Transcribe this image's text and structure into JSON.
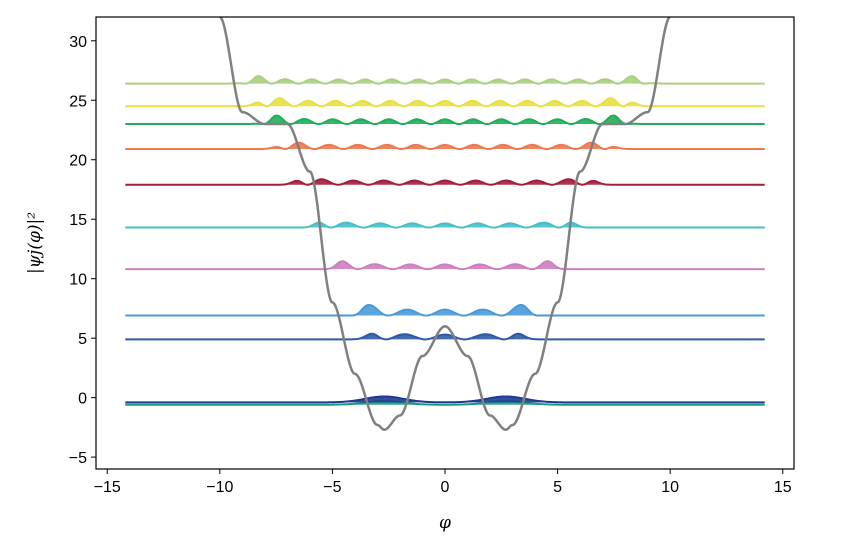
{
  "chart_data": {
    "type": "line",
    "title": "",
    "xlabel": "φ",
    "ylabel": "|ψj(φ)|²",
    "xlim": [
      -15.5,
      15.5
    ],
    "ylim": [
      -6,
      32
    ],
    "xticks": [
      -15,
      -10,
      -5,
      0,
      5,
      10,
      15
    ],
    "xtick_labels": [
      "−15",
      "−10",
      "−5",
      "0",
      "5",
      "10",
      "15"
    ],
    "yticks": [
      -5,
      0,
      5,
      10,
      15,
      20,
      25,
      30
    ],
    "ytick_labels": [
      "−5",
      "0",
      "5",
      "10",
      "15",
      "20",
      "25",
      "30"
    ],
    "grid": false,
    "legend": "none",
    "x_range": [
      -14.2,
      14.2
    ],
    "potential": {
      "color": "#808080",
      "description_points": {
        "phi": [
          -10,
          -9,
          -8,
          -7,
          -6,
          -5,
          -4,
          -3,
          -2.7,
          -2,
          -1,
          0,
          1,
          2,
          2.7,
          3,
          4,
          5,
          6,
          7,
          8,
          9,
          10
        ],
        "V": [
          32,
          24,
          23,
          23,
          19,
          8,
          2,
          -2.3,
          -2.7,
          -1.5,
          3.5,
          6,
          3.5,
          -1.5,
          -2.7,
          -2.3,
          2,
          8,
          19,
          23,
          23,
          24,
          32
        ]
      }
    },
    "series": [
      {
        "offset": -0.6,
        "color": "#1a9a7c",
        "shape": "double_well",
        "amp": 0.3
      },
      {
        "offset": -0.4,
        "color": "#1f3a93",
        "shape": "double_well",
        "amp": 0.5
      },
      {
        "offset": 4.9,
        "color": "#2c5aa8",
        "shape": "wavy",
        "amp": 0.4
      },
      {
        "offset": 6.9,
        "color": "#4a9ad8",
        "shape": "wavy",
        "amp": 0.5
      },
      {
        "offset": 10.8,
        "color": "#cc80bf",
        "shape": "wavy",
        "amp": 0.4
      },
      {
        "offset": 14.3,
        "color": "#46bfc8",
        "shape": "wavy",
        "amp": 0.35
      },
      {
        "offset": 17.9,
        "color": "#a51d3a",
        "shape": "wavy",
        "amp": 0.35
      },
      {
        "offset": 20.9,
        "color": "#f07850",
        "shape": "wavy",
        "amp": 0.35
      },
      {
        "offset": 23.0,
        "color": "#1fae5a",
        "shape": "wavy",
        "amp": 0.4
      },
      {
        "offset": 24.5,
        "color": "#e8e040",
        "shape": "wavy",
        "amp": 0.45
      },
      {
        "offset": 26.4,
        "color": "#a8d080",
        "shape": "wavy",
        "amp": 0.35
      }
    ]
  }
}
